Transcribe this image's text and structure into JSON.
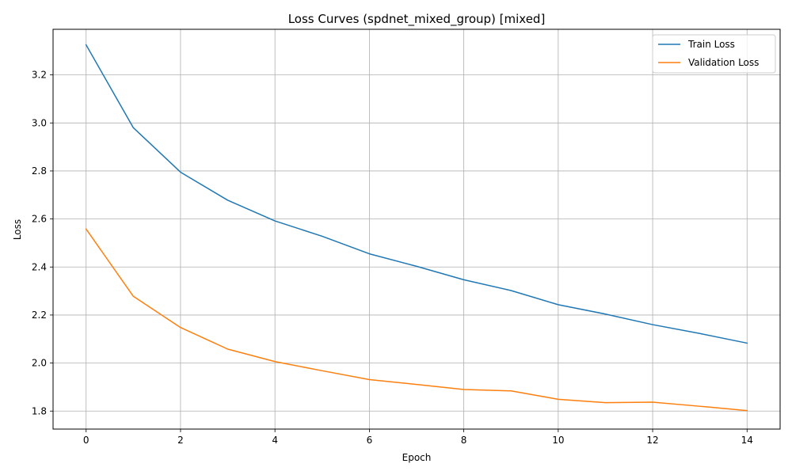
{
  "chart_data": {
    "type": "line",
    "title": "Loss Curves (spdnet_mixed_group) [mixed]",
    "xlabel": "Epoch",
    "ylabel": "Loss",
    "xlim": [
      -0.7,
      14.7
    ],
    "ylim": [
      1.725,
      3.39
    ],
    "xticks": [
      0,
      2,
      4,
      6,
      8,
      10,
      12,
      14
    ],
    "yticks": [
      1.8,
      2.0,
      2.2,
      2.4,
      2.6,
      2.8,
      3.0,
      3.2
    ],
    "ytick_labels": [
      "1.8",
      "2.0",
      "2.2",
      "2.4",
      "2.6",
      "2.8",
      "3.0",
      "3.2"
    ],
    "grid": true,
    "legend_position": "top-right",
    "x": [
      0,
      1,
      2,
      3,
      4,
      5,
      6,
      7,
      8,
      9,
      10,
      11,
      12,
      13,
      14
    ],
    "series": [
      {
        "name": "Train Loss",
        "color": "#1f77b4",
        "values": [
          3.325,
          2.98,
          2.795,
          2.678,
          2.592,
          2.528,
          2.455,
          2.403,
          2.347,
          2.302,
          2.243,
          2.204,
          2.16,
          2.123,
          2.083
        ]
      },
      {
        "name": "Validation Loss",
        "color": "#ff7f0e",
        "values": [
          2.558,
          2.278,
          2.148,
          2.058,
          2.006,
          1.968,
          1.931,
          1.911,
          1.89,
          1.884,
          1.849,
          1.835,
          1.837,
          1.82,
          1.802
        ]
      }
    ]
  }
}
